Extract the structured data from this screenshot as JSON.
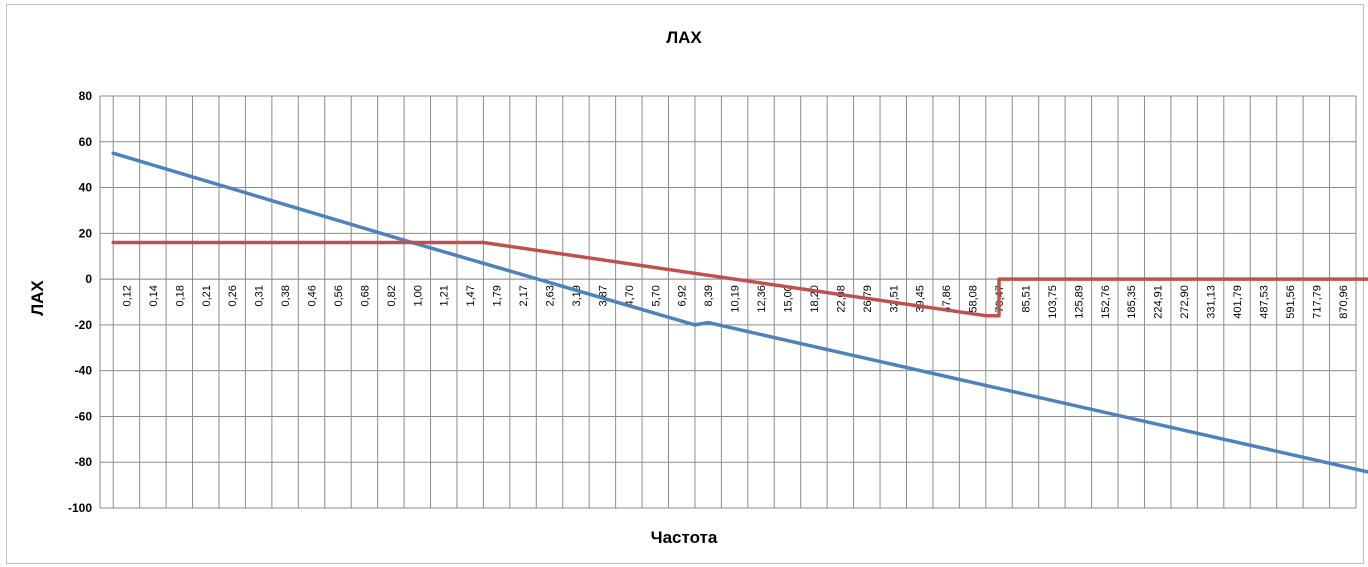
{
  "chart_data": {
    "type": "line",
    "title": "ЛАХ",
    "xlabel": "Частота",
    "ylabel": "ЛАХ",
    "ylim": [
      -100,
      80
    ],
    "yticks": [
      80,
      60,
      40,
      20,
      0,
      -20,
      -40,
      -60,
      -80,
      -100
    ],
    "grid": true,
    "x_tick_labels": [
      "0,12",
      "0,14",
      "0,18",
      "0,21",
      "0,26",
      "0,31",
      "0,38",
      "0,46",
      "0,56",
      "0,68",
      "0,82",
      "1,00",
      "1,21",
      "1,47",
      "1,79",
      "2,17",
      "2,63",
      "3,19",
      "3,87",
      "4,70",
      "5,70",
      "6,92",
      "8,39",
      "10,19",
      "12,36",
      "15,00",
      "18,20",
      "22,08",
      "26,79",
      "32,51",
      "39,45",
      "47,86",
      "58,08",
      "70,47",
      "85,51",
      "103,75",
      "125,89",
      "152,76",
      "185,35",
      "224,91",
      "272,90",
      "331,13",
      "401,79",
      "487,53",
      "591,56",
      "717,79",
      "870,96"
    ],
    "series": [
      {
        "color": "#4f81bd",
        "points": [
          [
            -0.5,
            55
          ],
          [
            10.5,
            17
          ],
          [
            21.5,
            -20
          ],
          [
            22,
            -19
          ],
          [
            48,
            -87
          ]
        ]
      },
      {
        "color": "#c0504d",
        "points": [
          [
            -0.5,
            16
          ],
          [
            13.5,
            16
          ],
          [
            32.5,
            -16
          ],
          [
            33,
            -16
          ],
          [
            33,
            0
          ],
          [
            48,
            0
          ]
        ]
      }
    ]
  }
}
